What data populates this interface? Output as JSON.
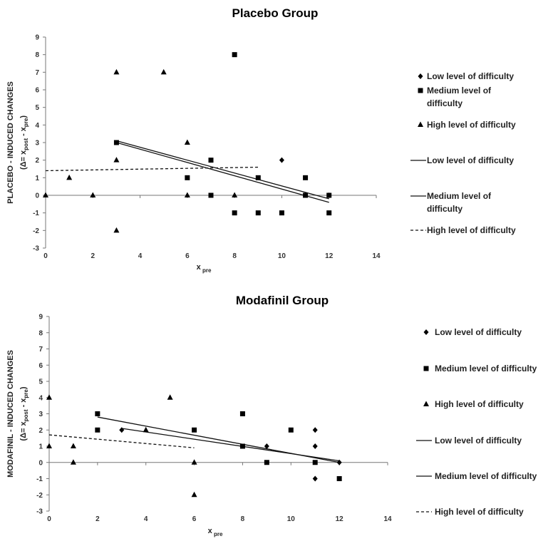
{
  "chart_data": [
    {
      "type": "scatter",
      "title": "Placebo Group",
      "ylabel_line1": "PLACEBO - INDUCED CHANGES",
      "ylabel_line2": "(Δ= x",
      "ylabel_sub1": "post",
      "ylabel_mid": " - x",
      "ylabel_sub2": "pre",
      "ylabel_end": ")",
      "xlabel": "x",
      "xlabel_sub": "pre",
      "xlim": [
        0,
        14
      ],
      "ylim": [
        -3,
        9
      ],
      "xticks": [
        0,
        2,
        4,
        6,
        8,
        10,
        12,
        14
      ],
      "yticks": [
        -3,
        -2,
        -1,
        0,
        1,
        2,
        3,
        4,
        5,
        6,
        7,
        8,
        9
      ],
      "legend_position": "right",
      "series": [
        {
          "name": "Low level of difficulty",
          "marker": "diamond",
          "points": [
            [
              10,
              2
            ],
            [
              12,
              0
            ]
          ]
        },
        {
          "name": "Medium level of difficulty",
          "marker": "square",
          "points": [
            [
              3,
              3
            ],
            [
              6,
              1
            ],
            [
              7,
              2
            ],
            [
              7,
              0
            ],
            [
              8,
              8
            ],
            [
              8,
              -1
            ],
            [
              9,
              1
            ],
            [
              9,
              -1
            ],
            [
              10,
              -1
            ],
            [
              11,
              1
            ],
            [
              11,
              0
            ],
            [
              12,
              0
            ],
            [
              12,
              -1
            ]
          ]
        },
        {
          "name": "High level of difficulty",
          "marker": "triangle",
          "points": [
            [
              0,
              0
            ],
            [
              1,
              1
            ],
            [
              2,
              0
            ],
            [
              3,
              7
            ],
            [
              3,
              2
            ],
            [
              3,
              -2
            ],
            [
              5,
              7
            ],
            [
              6,
              3
            ],
            [
              6,
              0
            ],
            [
              8,
              0
            ]
          ]
        }
      ],
      "trendlines": [
        {
          "name": "Low level of difficulty",
          "style": "solid",
          "from": [
            3,
            3.1
          ],
          "to": [
            12,
            -0.2
          ]
        },
        {
          "name": "Medium level of difficulty",
          "style": "solid",
          "from": [
            3,
            3.0
          ],
          "to": [
            12,
            -0.4
          ]
        },
        {
          "name": "High level of difficulty",
          "style": "dashed",
          "from": [
            0,
            1.4
          ],
          "to": [
            9,
            1.6
          ]
        }
      ]
    },
    {
      "type": "scatter",
      "title": "Modafinil Group",
      "ylabel_line1": "MODAFINIL - INDUCED CHANGES",
      "ylabel_line2": "(Δ= x",
      "ylabel_sub1": "post",
      "ylabel_mid": " - x",
      "ylabel_sub2": "pre",
      "ylabel_end": ")",
      "xlabel": "x",
      "xlabel_sub": "pre",
      "xlim": [
        0,
        14
      ],
      "ylim": [
        -3,
        9
      ],
      "xticks": [
        0,
        2,
        4,
        6,
        8,
        10,
        12,
        14
      ],
      "yticks": [
        -3,
        -2,
        -1,
        0,
        1,
        2,
        3,
        4,
        5,
        6,
        7,
        8,
        9
      ],
      "legend_position": "right",
      "series": [
        {
          "name": "Low level of difficulty",
          "marker": "diamond",
          "points": [
            [
              3,
              2
            ],
            [
              9,
              1
            ],
            [
              11,
              2
            ],
            [
              11,
              1
            ],
            [
              11,
              -1
            ],
            [
              12,
              0
            ]
          ]
        },
        {
          "name": "Medium level of difficulty",
          "marker": "square",
          "points": [
            [
              2,
              3
            ],
            [
              2,
              2
            ],
            [
              6,
              2
            ],
            [
              8,
              3
            ],
            [
              8,
              1
            ],
            [
              9,
              0
            ],
            [
              10,
              2
            ],
            [
              11,
              0
            ],
            [
              12,
              -1
            ]
          ]
        },
        {
          "name": "High level of difficulty",
          "marker": "triangle",
          "points": [
            [
              0,
              4
            ],
            [
              0,
              1
            ],
            [
              1,
              1
            ],
            [
              1,
              0
            ],
            [
              4,
              2
            ],
            [
              5,
              4
            ],
            [
              6,
              0
            ],
            [
              6,
              -2
            ]
          ]
        }
      ],
      "trendlines": [
        {
          "name": "Low level of difficulty",
          "style": "solid",
          "from": [
            3,
            2.1
          ],
          "to": [
            12,
            0.1
          ]
        },
        {
          "name": "Medium level of difficulty",
          "style": "solid",
          "from": [
            2,
            2.8
          ],
          "to": [
            12,
            0.0
          ]
        },
        {
          "name": "High level of difficulty",
          "style": "dashed",
          "from": [
            0,
            1.7
          ],
          "to": [
            6,
            0.9
          ]
        }
      ]
    }
  ],
  "legends": [
    [
      {
        "kind": "marker",
        "marker": "diamond",
        "lines": [
          "Low level of difficulty"
        ]
      },
      {
        "kind": "marker",
        "marker": "square",
        "lines": [
          "Medium level of",
          "difficulty"
        ]
      },
      {
        "kind": "marker",
        "marker": "triangle",
        "lines": [
          "High level of difficulty"
        ]
      },
      {
        "kind": "line",
        "style": "solid",
        "lines": [
          "Low level of difficulty"
        ]
      },
      {
        "kind": "line",
        "style": "solid",
        "lines": [
          "Medium level of",
          "difficulty"
        ]
      },
      {
        "kind": "line",
        "style": "dashed",
        "lines": [
          "High level of difficulty"
        ]
      }
    ],
    [
      {
        "kind": "marker",
        "marker": "diamond",
        "lines": [
          "Low level of difficulty"
        ]
      },
      {
        "kind": "marker",
        "marker": "square",
        "lines": [
          "Medium level of difficulty"
        ]
      },
      {
        "kind": "marker",
        "marker": "triangle",
        "lines": [
          "High level of difficulty"
        ]
      },
      {
        "kind": "line",
        "style": "solid",
        "lines": [
          "Low level of difficulty"
        ]
      },
      {
        "kind": "line",
        "style": "solid",
        "lines": [
          "Medium level of difficulty"
        ]
      },
      {
        "kind": "line",
        "style": "dashed",
        "lines": [
          "High level of difficulty"
        ]
      }
    ]
  ]
}
